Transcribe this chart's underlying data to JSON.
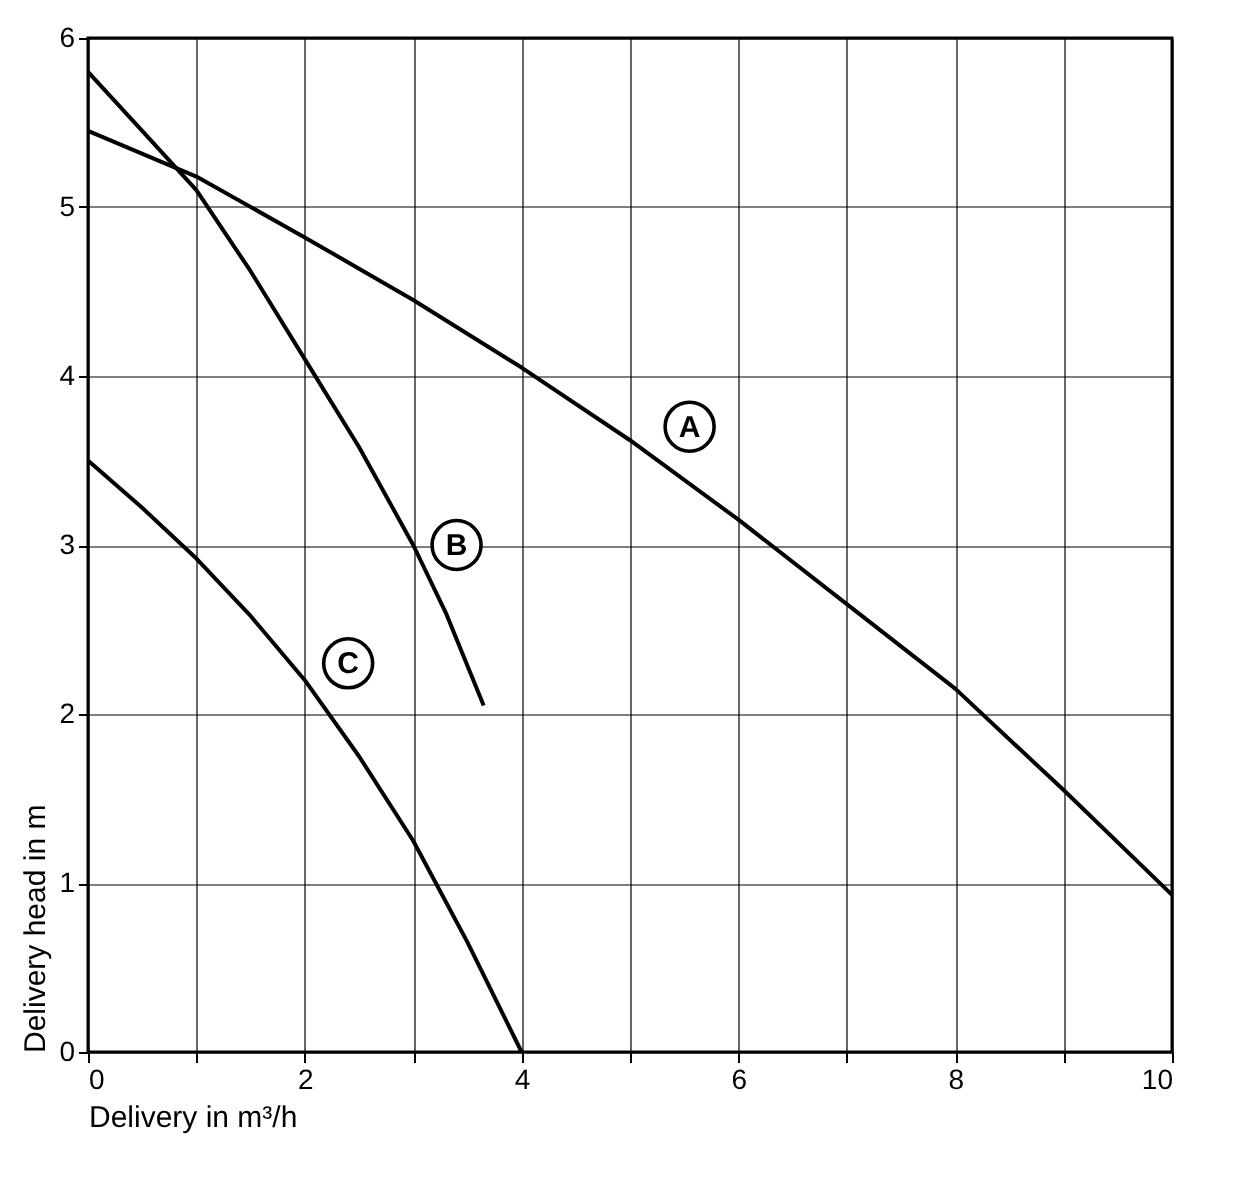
{
  "chart_data": {
    "type": "line",
    "xlabel": "Delivery in m³/h",
    "ylabel": "Delivery head in m",
    "xlim": [
      0,
      10
    ],
    "ylim": [
      0,
      6
    ],
    "xticks": [
      0,
      {
        "value": 1,
        "label": null
      },
      2,
      {
        "value": 3,
        "label": null
      },
      4,
      {
        "value": 5,
        "label": null
      },
      6,
      {
        "value": 7,
        "label": null
      },
      8,
      {
        "value": 9,
        "label": null
      },
      10
    ],
    "yticks": [
      0,
      1,
      2,
      3,
      4,
      5,
      6
    ],
    "grid": true,
    "legend": false,
    "marker": "none",
    "line_style": "solid",
    "series": [
      {
        "color": "#000000",
        "x": [
          0,
          1,
          2,
          3,
          4,
          5,
          6,
          7,
          8,
          9,
          10
        ],
        "values": [
          5.45,
          5.18,
          4.82,
          4.45,
          4.05,
          3.62,
          3.15,
          2.65,
          2.15,
          1.55,
          0.93
        ]
      },
      {
        "color": "#000000",
        "x": [
          0,
          0.5,
          1,
          1.5,
          2,
          2.5,
          3,
          3.3,
          3.65
        ],
        "values": [
          5.8,
          5.45,
          5.1,
          4.62,
          4.1,
          3.58,
          3.0,
          2.6,
          2.05
        ]
      },
      {
        "color": "#000000",
        "x": [
          0,
          0.5,
          1,
          1.5,
          2,
          2.5,
          3,
          3.5,
          4
        ],
        "values": [
          3.5,
          3.22,
          2.92,
          2.58,
          2.2,
          1.75,
          1.25,
          0.65,
          0
        ]
      }
    ],
    "annotations": [
      {
        "text": "A",
        "x": 5.55,
        "y": 3.7
      },
      {
        "text": "B",
        "x": 3.4,
        "y": 3.0
      },
      {
        "text": "C",
        "x": 2.4,
        "y": 2.3
      }
    ]
  }
}
